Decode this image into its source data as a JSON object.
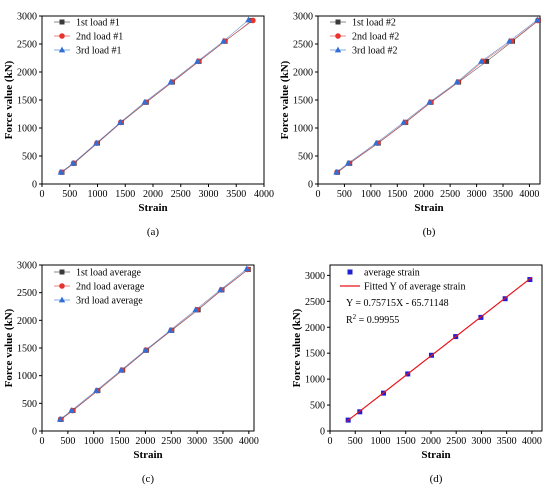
{
  "chart_data": [
    {
      "type": "line",
      "caption": "(a)",
      "xlabel": "Strain",
      "ylabel": "Force value (kN)",
      "xlim": [
        0,
        4000
      ],
      "ylim": [
        0,
        3000
      ],
      "xticks": [
        0,
        500,
        1000,
        1500,
        2000,
        2500,
        3000,
        3500,
        4000
      ],
      "yticks": [
        0,
        500,
        1000,
        1500,
        2000,
        2500,
        3000
      ],
      "legend_position": "top-left",
      "series": [
        {
          "name": "1st load #1",
          "marker": "square",
          "color": "#3a3a3a",
          "x": [
            360,
            580,
            1000,
            1430,
            1880,
            2350,
            2830,
            3300,
            3780
          ],
          "y": [
            210,
            370,
            730,
            1100,
            1460,
            1820,
            2190,
            2550,
            2920
          ]
        },
        {
          "name": "2nd load #1",
          "marker": "circle",
          "color": "#e8342e",
          "x": [
            350,
            570,
            990,
            1420,
            1870,
            2340,
            2820,
            3290,
            3800
          ],
          "y": [
            210,
            370,
            730,
            1100,
            1460,
            1820,
            2190,
            2550,
            2920
          ]
        },
        {
          "name": "3rd load #1",
          "marker": "triangle",
          "color": "#2f6fd6",
          "x": [
            340,
            560,
            980,
            1410,
            1850,
            2320,
            2800,
            3270,
            3720
          ],
          "y": [
            210,
            370,
            730,
            1100,
            1460,
            1820,
            2190,
            2550,
            2930
          ]
        }
      ]
    },
    {
      "type": "line",
      "caption": "(b)",
      "xlabel": "Strain",
      "ylabel": "Force value (kN)",
      "xlim": [
        0,
        4200
      ],
      "ylim": [
        0,
        3000
      ],
      "xticks": [
        0,
        500,
        1000,
        1500,
        2000,
        2500,
        3000,
        3500,
        4000
      ],
      "yticks": [
        0,
        500,
        1000,
        1500,
        2000,
        2500,
        3000
      ],
      "legend_position": "top-left",
      "series": [
        {
          "name": "1st load #2",
          "marker": "square",
          "color": "#3a3a3a",
          "x": [
            370,
            600,
            1140,
            1660,
            2140,
            2660,
            3190,
            3680,
            4170
          ],
          "y": [
            210,
            370,
            730,
            1100,
            1460,
            1820,
            2190,
            2550,
            2920
          ]
        },
        {
          "name": "2nd load #2",
          "marker": "circle",
          "color": "#e8342e",
          "x": [
            360,
            590,
            1130,
            1650,
            2130,
            2650,
            3120,
            3660,
            4160
          ],
          "y": [
            210,
            370,
            730,
            1100,
            1460,
            1820,
            2190,
            2550,
            2920
          ]
        },
        {
          "name": "3rd load #2",
          "marker": "triangle",
          "color": "#2f6fd6",
          "x": [
            350,
            570,
            1100,
            1620,
            2110,
            2630,
            3090,
            3620,
            4150
          ],
          "y": [
            210,
            370,
            730,
            1100,
            1460,
            1820,
            2190,
            2550,
            2930
          ]
        }
      ]
    },
    {
      "type": "line",
      "caption": "(c)",
      "xlabel": "Strain",
      "ylabel": "Force value (kN)",
      "xlim": [
        0,
        4100
      ],
      "ylim": [
        0,
        3000
      ],
      "xticks": [
        0,
        500,
        1000,
        1500,
        2000,
        2500,
        3000,
        3500,
        4000
      ],
      "yticks": [
        0,
        500,
        1000,
        1500,
        2000,
        2500,
        3000
      ],
      "legend_position": "top-left",
      "series": [
        {
          "name": "1st load average",
          "marker": "square",
          "color": "#3a3a3a",
          "x": [
            370,
            600,
            1080,
            1560,
            2020,
            2510,
            3020,
            3480,
            3990
          ],
          "y": [
            210,
            370,
            730,
            1100,
            1460,
            1820,
            2190,
            2550,
            2920
          ]
        },
        {
          "name": "2nd load average",
          "marker": "circle",
          "color": "#e8342e",
          "x": [
            360,
            590,
            1070,
            1550,
            2010,
            2500,
            3000,
            3470,
            3980
          ],
          "y": [
            210,
            370,
            730,
            1100,
            1460,
            1820,
            2190,
            2550,
            2920
          ]
        },
        {
          "name": "3rd load average",
          "marker": "triangle",
          "color": "#2f6fd6",
          "x": [
            350,
            570,
            1050,
            1530,
            2000,
            2480,
            2970,
            3450,
            3960
          ],
          "y": [
            210,
            370,
            730,
            1100,
            1460,
            1820,
            2190,
            2550,
            2930
          ]
        }
      ]
    },
    {
      "type": "scatter",
      "caption": "(d)",
      "xlabel": "Strain",
      "ylabel": "Force value (kN)",
      "xlim": [
        0,
        4200
      ],
      "ylim": [
        0,
        3200
      ],
      "xticks": [
        0,
        500,
        1000,
        1500,
        2000,
        2500,
        3000,
        3500,
        4000
      ],
      "yticks": [
        0,
        500,
        1000,
        1500,
        2000,
        2500,
        3000
      ],
      "legend_position": "top-left",
      "series": [
        {
          "name": "average strain",
          "marker": "square",
          "color": "#1f1fd6",
          "x": [
            360,
            590,
            1060,
            1540,
            2010,
            2490,
            2990,
            3470,
            3960
          ],
          "y": [
            210,
            370,
            730,
            1100,
            1460,
            1820,
            2190,
            2550,
            2920
          ]
        },
        {
          "name": "Fitted Y of average strain",
          "marker": "line",
          "color": "#e8151b",
          "x": [
            330,
            4000
          ],
          "y": [
            184,
            2963
          ]
        }
      ],
      "annotations": [
        "Y = 0.75715X - 65.71148",
        "R",
        "2",
        " = 0.99955"
      ]
    }
  ]
}
